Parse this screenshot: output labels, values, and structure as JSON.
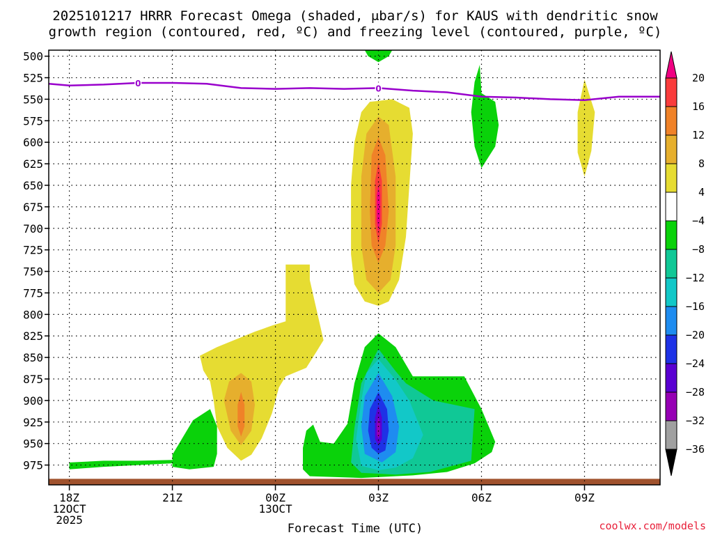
{
  "chart_data": {
    "type": "heatmap",
    "title_line1": "2025101217 HRRR Forecast Omega (shaded, μbar/s) for KAUS with dendritic snow",
    "title_line2": "growth region (contoured, red, ºC) and freezing level (contoured, purple, ºC)",
    "xlabel": "Forecast Time (UTC)",
    "credit": "coolwx.com/models",
    "x_unit": "hours since 18Z 12 Oct 2025",
    "xlim": [
      -0.6,
      17.2
    ],
    "x_ticks": [
      {
        "hour": 0,
        "labels": [
          "18Z",
          "12OCT",
          "2025"
        ]
      },
      {
        "hour": 3,
        "labels": [
          "21Z"
        ]
      },
      {
        "hour": 6,
        "labels": [
          "00Z",
          "13OCT"
        ]
      },
      {
        "hour": 9,
        "labels": [
          "03Z"
        ]
      },
      {
        "hour": 12,
        "labels": [
          "06Z"
        ]
      },
      {
        "hour": 15,
        "labels": [
          "09Z"
        ]
      }
    ],
    "y_unit": "hPa",
    "ylim": [
      493,
      998
    ],
    "y_ticks": [
      500,
      525,
      550,
      575,
      600,
      625,
      650,
      675,
      700,
      725,
      750,
      775,
      800,
      825,
      850,
      875,
      900,
      925,
      950,
      975
    ],
    "colorbar": {
      "levels": [
        -36,
        -32,
        -28,
        -24,
        -20,
        -16,
        -12,
        -8,
        -4,
        4,
        8,
        12,
        16,
        20
      ],
      "colors": [
        "#000000",
        "#a0a0a0",
        "#9600b4",
        "#5a00d2",
        "#1e32e6",
        "#1e8cf0",
        "#12c8c8",
        "#10c896",
        "#0ad20a",
        "#ffffff",
        "#e6dc32",
        "#e6af2d",
        "#f08228",
        "#fa3c3c",
        "#f00082"
      ]
    },
    "surface_band_color": "#a0522d",
    "freezing_level": {
      "label": "0",
      "color": "#9900cc",
      "points": [
        [
          -0.6,
          532
        ],
        [
          0,
          534
        ],
        [
          1,
          533
        ],
        [
          2,
          531
        ],
        [
          3,
          531
        ],
        [
          4,
          532
        ],
        [
          5,
          537
        ],
        [
          6,
          538
        ],
        [
          7,
          537
        ],
        [
          8,
          538
        ],
        [
          9,
          537
        ],
        [
          10,
          540
        ],
        [
          11,
          542
        ],
        [
          12,
          547
        ],
        [
          13,
          548
        ],
        [
          14,
          550
        ],
        [
          15,
          551
        ],
        [
          16,
          547
        ],
        [
          17.2,
          547
        ]
      ],
      "label_positions": [
        [
          2,
          531
        ],
        [
          9,
          537
        ]
      ]
    },
    "shaded_regions": [
      {
        "name": "green-top-500",
        "level": "-8 to -4",
        "color": "#0ad20a",
        "points": [
          [
            8.6,
            493
          ],
          [
            9.4,
            493
          ],
          [
            9.3,
            500
          ],
          [
            9,
            507
          ],
          [
            8.7,
            500
          ]
        ]
      },
      {
        "name": "green-550-630",
        "level": "-8 to -4",
        "color": "#0ad20a",
        "points": [
          [
            12,
            543
          ],
          [
            12.4,
            553
          ],
          [
            12.5,
            580
          ],
          [
            12.4,
            605
          ],
          [
            12,
            630
          ],
          [
            11.8,
            605
          ],
          [
            11.7,
            565
          ],
          [
            11.8,
            530
          ],
          [
            11.95,
            510
          ]
        ]
      },
      {
        "name": "yellow-09z",
        "level": "4 to 8",
        "color": "#e6dc32",
        "points": [
          [
            15,
            527
          ],
          [
            15.3,
            565
          ],
          [
            15.2,
            610
          ],
          [
            15,
            640
          ],
          [
            14.8,
            612
          ],
          [
            14.8,
            565
          ]
        ]
      },
      {
        "name": "yellow-03z-column",
        "level": "4 to 8",
        "color": "#e6dc32",
        "points": [
          [
            9,
            552
          ],
          [
            9.4,
            550
          ],
          [
            9.9,
            560
          ],
          [
            10,
            590
          ],
          [
            9.9,
            650
          ],
          [
            9.8,
            710
          ],
          [
            9.6,
            760
          ],
          [
            9.3,
            785
          ],
          [
            9,
            790
          ],
          [
            8.6,
            785
          ],
          [
            8.3,
            765
          ],
          [
            8.2,
            730
          ],
          [
            8.2,
            650
          ],
          [
            8.3,
            600
          ],
          [
            8.5,
            565
          ],
          [
            8.75,
            553
          ]
        ]
      },
      {
        "name": "orange-light-03z",
        "level": "8 to 12",
        "color": "#e6af2d",
        "points": [
          [
            9,
            570
          ],
          [
            9.3,
            580
          ],
          [
            9.5,
            640
          ],
          [
            9.5,
            720
          ],
          [
            9.35,
            760
          ],
          [
            9,
            775
          ],
          [
            8.65,
            760
          ],
          [
            8.5,
            720
          ],
          [
            8.5,
            640
          ],
          [
            8.65,
            590
          ]
        ]
      },
      {
        "name": "orange-03z",
        "level": "12 to 16",
        "color": "#f08228",
        "points": [
          [
            9,
            594
          ],
          [
            9.2,
            615
          ],
          [
            9.3,
            680
          ],
          [
            9.2,
            720
          ],
          [
            9,
            740
          ],
          [
            8.8,
            720
          ],
          [
            8.75,
            680
          ],
          [
            8.8,
            615
          ]
        ]
      },
      {
        "name": "red-03z",
        "level": "16 to 20",
        "color": "#fa3c3c",
        "points": [
          [
            9,
            623
          ],
          [
            9.1,
            645
          ],
          [
            9.1,
            695
          ],
          [
            9,
            718
          ],
          [
            8.9,
            695
          ],
          [
            8.9,
            645
          ]
        ]
      },
      {
        "name": "magenta-03z",
        "level": ">20",
        "color": "#f00082",
        "points": [
          [
            9,
            650
          ],
          [
            9.05,
            662
          ],
          [
            9.05,
            690
          ],
          [
            9,
            705
          ],
          [
            8.95,
            690
          ],
          [
            8.95,
            662
          ]
        ]
      },
      {
        "name": "yellow-00z",
        "level": "4 to 8",
        "color": "#e6dc32",
        "points": [
          [
            6.3,
            742
          ],
          [
            7,
            742
          ],
          [
            7,
            760
          ],
          [
            7.4,
            830
          ],
          [
            7.2,
            843
          ],
          [
            6.9,
            862
          ],
          [
            6.3,
            872
          ],
          [
            6.1,
            885
          ],
          [
            5.9,
            915
          ],
          [
            5.6,
            944
          ],
          [
            5.3,
            963
          ],
          [
            5,
            970
          ],
          [
            4.6,
            955
          ],
          [
            4.3,
            930
          ],
          [
            4.2,
            900
          ],
          [
            4.1,
            878
          ],
          [
            3.9,
            865
          ],
          [
            3.8,
            848
          ],
          [
            4.3,
            838
          ],
          [
            5.4,
            820
          ],
          [
            5.9,
            813
          ],
          [
            6.3,
            808
          ]
        ]
      },
      {
        "name": "orange-light-00z",
        "level": "8 to 12",
        "color": "#e6af2d",
        "points": [
          [
            5,
            868
          ],
          [
            5.3,
            878
          ],
          [
            5.4,
            905
          ],
          [
            5.3,
            935
          ],
          [
            5,
            952
          ],
          [
            4.7,
            935
          ],
          [
            4.5,
            900
          ],
          [
            4.65,
            878
          ]
        ]
      },
      {
        "name": "orange-00z",
        "level": "12 to 16",
        "color": "#f08228",
        "points": [
          [
            5,
            890
          ],
          [
            5.1,
            905
          ],
          [
            5.1,
            930
          ],
          [
            5,
            942
          ],
          [
            4.9,
            930
          ],
          [
            4.9,
            905
          ]
        ]
      },
      {
        "name": "green-22z",
        "level": "-8 to -4",
        "color": "#0ad20a",
        "points": [
          [
            3,
            963
          ],
          [
            3.6,
            923
          ],
          [
            4.1,
            910
          ],
          [
            4.3,
            930
          ],
          [
            4.3,
            962
          ],
          [
            4.2,
            977
          ],
          [
            3.5,
            980
          ],
          [
            3,
            977
          ]
        ]
      },
      {
        "name": "green-surface-strip",
        "level": "-8 to -4",
        "color": "#0ad20a",
        "points": [
          [
            0,
            972
          ],
          [
            1,
            970
          ],
          [
            2,
            970
          ],
          [
            3,
            969
          ],
          [
            3,
            973
          ],
          [
            2,
            975
          ],
          [
            1,
            977
          ],
          [
            0,
            980
          ]
        ]
      },
      {
        "name": "green-03z-lower",
        "level": "-8 to -4",
        "color": "#0ad20a",
        "points": [
          [
            9,
            822
          ],
          [
            9.5,
            838
          ],
          [
            10,
            872
          ],
          [
            11.5,
            872
          ],
          [
            12,
            910
          ],
          [
            12.4,
            948
          ],
          [
            12.3,
            960
          ],
          [
            11.8,
            973
          ],
          [
            11,
            983
          ],
          [
            10,
            987
          ],
          [
            9,
            989
          ],
          [
            8.5,
            990
          ],
          [
            7,
            988
          ],
          [
            6.8,
            980
          ],
          [
            6.8,
            955
          ],
          [
            6.9,
            935
          ],
          [
            7.1,
            928
          ],
          [
            7.3,
            948
          ],
          [
            7.7,
            950
          ],
          [
            8.1,
            927
          ],
          [
            8.3,
            880
          ],
          [
            8.6,
            838
          ]
        ]
      },
      {
        "name": "teal-03z",
        "level": "-12 to -8",
        "color": "#10c896",
        "points": [
          [
            9,
            840
          ],
          [
            9.5,
            866
          ],
          [
            9.8,
            880
          ],
          [
            10.6,
            900
          ],
          [
            11.8,
            910
          ],
          [
            11.7,
            970
          ],
          [
            10.5,
            983
          ],
          [
            9.5,
            986
          ],
          [
            8.5,
            984
          ],
          [
            8.2,
            972
          ],
          [
            8.3,
            932
          ],
          [
            8.5,
            880
          ]
        ]
      },
      {
        "name": "cyan-03z",
        "level": "-16 to -12",
        "color": "#12c8c8",
        "points": [
          [
            9,
            852
          ],
          [
            9.5,
            876
          ],
          [
            9.9,
            900
          ],
          [
            10.3,
            940
          ],
          [
            10,
            967
          ],
          [
            9.5,
            978
          ],
          [
            9,
            981
          ],
          [
            8.5,
            976
          ],
          [
            8.35,
            945
          ],
          [
            8.5,
            900
          ],
          [
            8.65,
            868
          ]
        ]
      },
      {
        "name": "blue-light-03z",
        "level": "-20 to -16",
        "color": "#1e8cf0",
        "points": [
          [
            9,
            868
          ],
          [
            9.4,
            895
          ],
          [
            9.6,
            930
          ],
          [
            9.5,
            960
          ],
          [
            9.1,
            972
          ],
          [
            8.6,
            962
          ],
          [
            8.5,
            930
          ],
          [
            8.6,
            895
          ]
        ]
      },
      {
        "name": "blue-03z",
        "level": "-24 to -20",
        "color": "#1e32e6",
        "points": [
          [
            9,
            890
          ],
          [
            9.25,
            910
          ],
          [
            9.3,
            935
          ],
          [
            9.2,
            958
          ],
          [
            9,
            962
          ],
          [
            8.8,
            955
          ],
          [
            8.7,
            935
          ],
          [
            8.75,
            910
          ]
        ]
      },
      {
        "name": "violet-03z",
        "level": "-28 to -24",
        "color": "#5a00d2",
        "points": [
          [
            9,
            905
          ],
          [
            9.1,
            920
          ],
          [
            9.1,
            945
          ],
          [
            9,
            952
          ],
          [
            8.9,
            945
          ],
          [
            8.9,
            920
          ]
        ]
      },
      {
        "name": "purple-03z",
        "level": "-32 to -28",
        "color": "#9600b4",
        "points": [
          [
            9,
            918
          ],
          [
            9.05,
            928
          ],
          [
            9.05,
            940
          ],
          [
            9,
            944
          ],
          [
            8.95,
            940
          ],
          [
            8.95,
            928
          ]
        ]
      }
    ]
  }
}
